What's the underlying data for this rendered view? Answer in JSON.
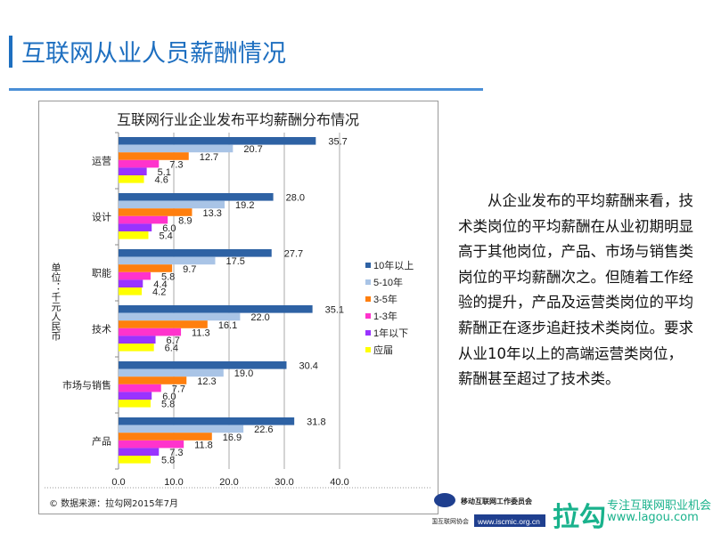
{
  "header": {
    "title": "互联网从业人员薪酬情况"
  },
  "chart_data": {
    "type": "bar",
    "orientation": "horizontal",
    "title": "互联网行业企业发布平均薪酬分布情况",
    "ylabel": "单位：千元人民币",
    "categories": [
      "运营",
      "设计",
      "职能",
      "技术",
      "市场与销售",
      "产品"
    ],
    "xlim": [
      0,
      40
    ],
    "xticks": [
      "0.0",
      "10.0",
      "20.0",
      "30.0",
      "40.0"
    ],
    "grid": true,
    "legend_position": "right",
    "series": [
      {
        "name": "10年以上",
        "color": "#2e62a4",
        "values": [
          35.7,
          28.0,
          27.7,
          35.1,
          30.4,
          31.8
        ]
      },
      {
        "name": "5-10年",
        "color": "#a9c4e6",
        "values": [
          20.7,
          19.2,
          17.5,
          22.0,
          19.0,
          22.6
        ]
      },
      {
        "name": "3-5年",
        "color": "#ff7f0e",
        "values": [
          12.7,
          13.3,
          9.7,
          16.1,
          12.3,
          16.9
        ]
      },
      {
        "name": "1-3年",
        "color": "#ff33cc",
        "values": [
          7.3,
          8.9,
          5.8,
          11.3,
          7.7,
          11.8
        ]
      },
      {
        "name": "1年以下",
        "color": "#9933ff",
        "values": [
          5.1,
          6.0,
          4.4,
          6.7,
          6.0,
          7.3
        ]
      },
      {
        "name": "应届",
        "color": "#ffff00",
        "values": [
          4.6,
          5.4,
          4.2,
          6.4,
          5.8,
          5.8
        ]
      }
    ],
    "source": "© 数据来源：拉勾网2015年7月"
  },
  "side_text": "从企业发布的平均薪酬来看，技术类岗位的平均薪酬在从业初期明显高于其他岗位，产品、市场与销售类岗位的平均薪酬次之。但随着工作经验的提升，产品及运营类岗位的平均薪酬正在逐步追赶技术类岗位。要求从业10年以上的高端运营类岗位，薪酬甚至超过了技术类。",
  "logos": {
    "iscmic_name": "移动互联网工作委员会",
    "iscmic_org": "中国互联网协会",
    "iscmic_url": "www.iscmic.org.cn",
    "lagou_mark": "拉勾",
    "lagou_slogan": "专注互联网职业机会",
    "lagou_url": "www.lagou.com"
  }
}
